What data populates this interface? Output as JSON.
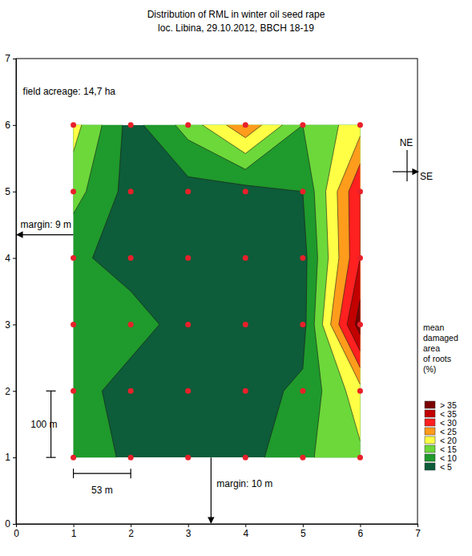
{
  "chart_data": {
    "type": "contour",
    "title": "Distribution of RML in winter oil seed rape",
    "subtitle": "loc. Libina, 29.10.2012, BBCH 18-19",
    "x": [
      1,
      2,
      3,
      4,
      5,
      6
    ],
    "y": [
      1,
      2,
      3,
      4,
      5,
      6
    ],
    "z": [
      [
        8,
        4,
        3,
        3,
        9,
        14
      ],
      [
        7,
        3,
        3,
        3,
        6,
        18
      ],
      [
        9,
        7,
        3,
        3,
        3,
        38
      ],
      [
        6,
        3,
        3,
        3,
        3,
        30
      ],
      [
        12,
        3,
        3,
        3,
        5,
        30
      ],
      [
        17,
        3,
        12,
        24,
        10,
        18
      ]
    ],
    "thresholds": [
      5,
      10,
      15,
      20,
      25,
      30,
      35
    ],
    "colors": [
      "#0d5c3a",
      "#1f9a2c",
      "#6cd83a",
      "#ffff46",
      "#ff9c1c",
      "#ff2020",
      "#c20000",
      "#7a0000"
    ],
    "legend_labels": [
      "< 5",
      "< 10",
      "< 15",
      "< 20",
      "< 25",
      "< 30",
      "< 35",
      "> 35"
    ],
    "legend_title": [
      "mean",
      "damaged",
      "area",
      "of roots",
      "(%)"
    ],
    "legend": "right",
    "xlim": [
      0,
      7
    ],
    "ylim": [
      0,
      7
    ],
    "xticks": [
      0,
      1,
      2,
      3,
      4,
      5,
      6,
      7
    ],
    "yticks": [
      0,
      1,
      2,
      3,
      4,
      5,
      6,
      7
    ],
    "annotations": [
      "field acreage: 14,7 ha",
      "margin: 9 m",
      "margin: 10 m",
      "100 m",
      "53 m",
      "NE",
      "SE"
    ]
  }
}
